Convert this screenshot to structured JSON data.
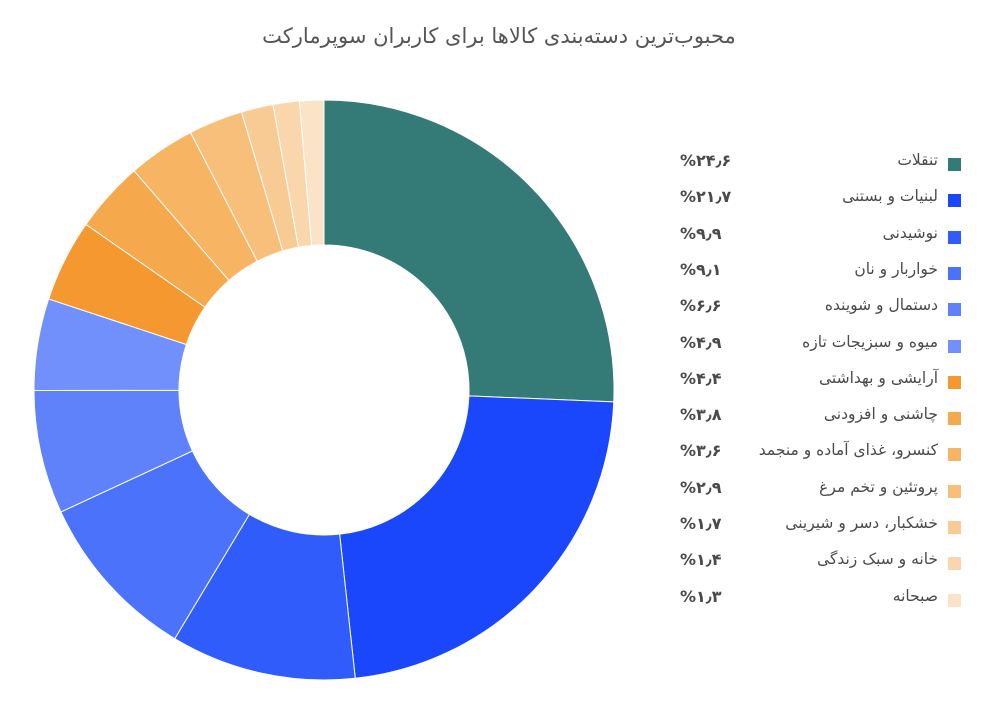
{
  "chart_data": {
    "type": "pie",
    "title": "محبوب‌ترین دسته‌بندی کالاها برای کاربران سوپرمارکت",
    "legend": "right",
    "series": [
      {
        "label": "تنقلات",
        "value": 24.6,
        "display": "%۲۴٫۶",
        "color": "#347a76"
      },
      {
        "label": "لبنیات و بستنی",
        "value": 21.7,
        "display": "%۲۱٫۷",
        "color": "#1a47fc"
      },
      {
        "label": "نوشیدنی",
        "value": 9.9,
        "display": "%۹٫۹",
        "color": "#2f5cfb"
      },
      {
        "label": "خواربار و نان",
        "value": 9.1,
        "display": "%۹٫۱",
        "color": "#4a72fb"
      },
      {
        "label": "دستمال و شوینده",
        "value": 6.6,
        "display": "%۶٫۶",
        "color": "#5f82fb"
      },
      {
        "label": "میوه و سبزیجات تازه",
        "value": 4.9,
        "display": "%۴٫۹",
        "color": "#7190fb"
      },
      {
        "label": "آرایشی و بهداشتی",
        "value": 4.4,
        "display": "%۴٫۴",
        "color": "#f5982f"
      },
      {
        "label": "چاشنی و افزودنی",
        "value": 3.8,
        "display": "%۳٫۸",
        "color": "#f6a84c"
      },
      {
        "label": "کنسرو، غذای آماده و منجمد",
        "value": 3.6,
        "display": "%۳٫۶",
        "color": "#f7b463"
      },
      {
        "label": "پروتئین و تخم مرغ",
        "value": 2.9,
        "display": "%۲٫۹",
        "color": "#f8bf7a"
      },
      {
        "label": "خشکبار، دسر و شیرینی",
        "value": 1.7,
        "display": "%۱٫۷",
        "color": "#f9cb94"
      },
      {
        "label": "خانه و سبک زندگی",
        "value": 1.4,
        "display": "%۱٫۴",
        "color": "#fad6ac"
      },
      {
        "label": "صبحانه",
        "value": 1.3,
        "display": "%۱٫۳",
        "color": "#fbe3c8"
      }
    ]
  }
}
